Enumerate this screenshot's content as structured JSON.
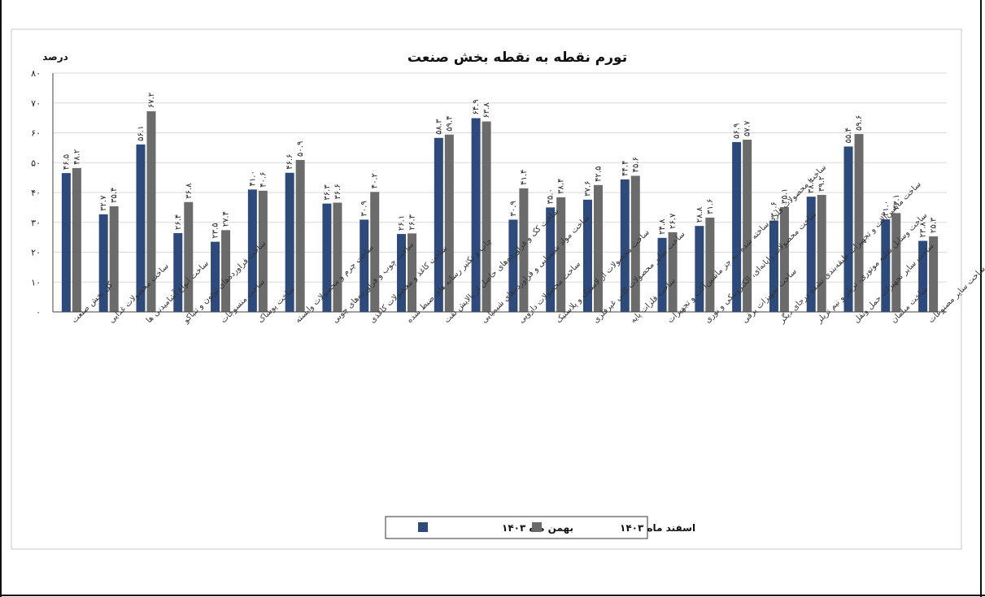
{
  "chart_data": {
    "type": "bar",
    "title": "تورم نقطه به نقطه بخش صنعت",
    "ylabel": "درصد",
    "ylim": [
      0,
      80
    ],
    "yticks": [
      "۰",
      "۱۰",
      "۲۰",
      "۳۰",
      "۴۰",
      "۵۰",
      "۶۰",
      "۷۰",
      "۸۰"
    ],
    "grid": true,
    "legend_position": "bottom",
    "categories": [
      "کل بخش صنعت",
      "ساخت محصولات غذایی",
      "ساخت انواع آشامیدنی ها",
      "ساخت فراورده‌های توتون و تنباکو",
      "ساخت منسوجات",
      "ساخت پوشاک",
      "ساخت چرم و محصولات وابسته",
      "ساخت چوب و فراورده‌های چوبی",
      "ساخت کاغذ و محصولات کاغذی",
      "چاپ و تکثیر رسانه های ضبط شده",
      "ساخت کک و فراورده‌های حاصل از پالایش نفت",
      "ساخت مواد شیمیایی و فراورده‌های شیمیایی",
      "ساخت محصولات دارویی",
      "ساخت محصولات از لاستیک و پلاستیک",
      "ساخت سایر محصولات کانی غیرفلزی",
      "ساخت فلزات پایه",
      "ساخت محصولات فلزی ساخته شده، به جز ماشین‌آلات و تجهیزات",
      "ساخت محصولات رایانه‌ای، الکترونیکی و نوری",
      "ساخت تجهیزات برقی",
      "ساخت ماشین‌آلات و تجهیزات طبقه‌بندی نشده درجای دیگر",
      "ساخت وسایل نقلیه موتوری، تریلر و نیم تریلر",
      "ساخت سایر تجهیزات حمل ونقل",
      "ساخت مبلمان",
      "ساخت سایر مصنوعات"
    ],
    "series": [
      {
        "name": "بهمن ماه ۱۴۰۳",
        "color": "#2e4a7a",
        "values": [
          46.5,
          32.7,
          56.1,
          26.4,
          23.5,
          41.0,
          46.6,
          36.3,
          30.9,
          26.1,
          58.3,
          64.9,
          30.9,
          35.0,
          37.6,
          44.4,
          24.8,
          28.8,
          56.9,
          30.6,
          38.6,
          55.4,
          31.0,
          23.8
        ],
        "labels": [
          "۴۶.۵",
          "۳۲.۷",
          "۵۶.۱",
          "۲۶.۴",
          "۲۳.۵",
          "۴۱.۰",
          "۴۶.۶",
          "۳۶.۳",
          "۳۰.۹",
          "۲۶.۱",
          "۵۸.۳",
          "۶۴.۹",
          "۳۰.۹",
          "۳۵.۰",
          "۳۷.۶",
          "۴۴.۴",
          "۲۴.۸",
          "۲۸.۸",
          "۵۶.۹",
          "۳۰.۶",
          "۳۸.۶",
          "۵۵.۴",
          "۳۱.۰",
          "۲۳.۸"
        ]
      },
      {
        "name": "اسفند ماه ۱۴۰۳",
        "color": "#6b6b6b",
        "values": [
          48.2,
          35.4,
          67.2,
          36.8,
          27.4,
          40.6,
          50.9,
          36.6,
          40.2,
          26.3,
          59.4,
          63.8,
          41.4,
          38.4,
          42.5,
          45.6,
          26.7,
          31.6,
          57.7,
          35.1,
          39.2,
          59.6,
          33.1,
          25.3
        ],
        "labels": [
          "۴۸.۲",
          "۳۵.۴",
          "۶۷.۲",
          "۳۶.۸",
          "۲۷.۴",
          "۴۰.۶",
          "۵۰.۹",
          "۳۶.۶",
          "۴۰.۲",
          "۲۶.۳",
          "۵۹.۴",
          "۶۳.۸",
          "۴۱.۴",
          "۳۸.۴",
          "۴۲.۵",
          "۴۵.۶",
          "۲۶.۷",
          "۳۱.۶",
          "۵۷.۷",
          "۳۵.۱",
          "۳۹.۲",
          "۵۹.۶",
          "۳۳.۱",
          "۲۵.۳"
        ]
      }
    ]
  }
}
